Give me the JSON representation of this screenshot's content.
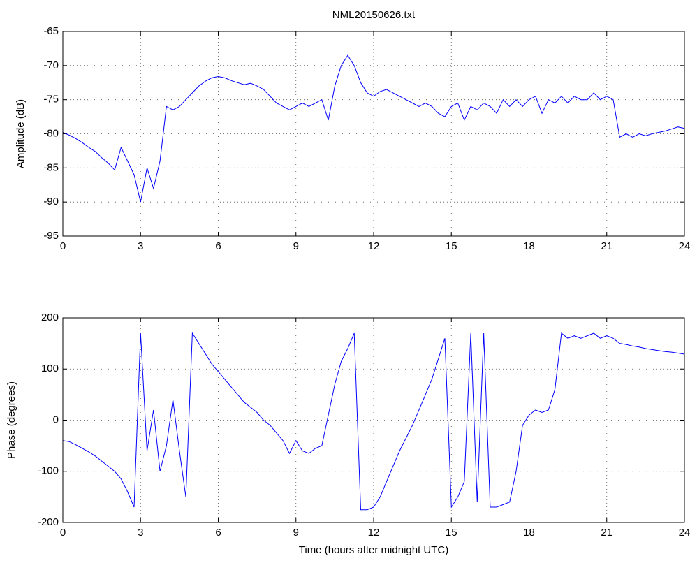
{
  "chart_data": [
    {
      "type": "line",
      "title": "NML20150626.txt",
      "ylabel": "Amplitude (dB)",
      "xlim": [
        0,
        24
      ],
      "xticks": [
        0,
        3,
        6,
        9,
        12,
        15,
        18,
        21,
        24
      ],
      "ylim": [
        -95,
        -65
      ],
      "yticks": [
        -95,
        -90,
        -85,
        -80,
        -75,
        -70,
        -65
      ],
      "grid": true,
      "x": [
        0,
        0.25,
        0.5,
        0.75,
        1,
        1.25,
        1.5,
        1.75,
        2,
        2.25,
        2.5,
        2.75,
        3,
        3.25,
        3.5,
        3.75,
        4,
        4.25,
        4.5,
        4.75,
        5,
        5.25,
        5.5,
        5.75,
        6,
        6.25,
        6.5,
        6.75,
        7,
        7.25,
        7.5,
        7.75,
        8,
        8.25,
        8.5,
        8.75,
        9,
        9.25,
        9.5,
        9.75,
        10,
        10.25,
        10.5,
        10.75,
        11,
        11.25,
        11.5,
        11.75,
        12,
        12.25,
        12.5,
        12.75,
        13,
        13.25,
        13.5,
        13.75,
        14,
        14.25,
        14.5,
        14.75,
        15,
        15.25,
        15.5,
        15.75,
        16,
        16.25,
        16.5,
        16.75,
        17,
        17.25,
        17.5,
        17.75,
        18,
        18.25,
        18.5,
        18.75,
        19,
        19.25,
        19.5,
        19.75,
        20,
        20.25,
        20.5,
        20.75,
        21,
        21.25,
        21.5,
        21.75,
        22,
        22.25,
        22.5,
        22.75,
        23,
        23.25,
        23.5,
        23.75,
        24
      ],
      "series": [
        {
          "color": "#0000ff",
          "values": [
            -79.8,
            -80.2,
            -80.7,
            -81.3,
            -82,
            -82.6,
            -83.5,
            -84.3,
            -85.3,
            -82,
            -84,
            -86,
            -90,
            -85,
            -88,
            -84,
            -76,
            -76.5,
            -76,
            -75,
            -74,
            -73,
            -72.3,
            -71.8,
            -71.6,
            -71.8,
            -72.2,
            -72.5,
            -72.8,
            -72.6,
            -73,
            -73.5,
            -74.5,
            -75.5,
            -76,
            -76.5,
            -76,
            -75.5,
            -76,
            -75.5,
            -75,
            -78,
            -73,
            -70,
            -68.5,
            -70,
            -72.5,
            -74,
            -74.5,
            -73.8,
            -73.5,
            -74,
            -74.5,
            -75,
            -75.5,
            -76,
            -75.5,
            -76,
            -77,
            -77.5,
            -76,
            -75.5,
            -78,
            -76,
            -76.5,
            -75.5,
            -76,
            -77,
            -75,
            -76,
            -75,
            -76,
            -75,
            -74.5,
            -77,
            -75,
            -75.5,
            -74.5,
            -75.5,
            -74.5,
            -75,
            -75,
            -74,
            -75,
            -74.5,
            -75,
            -80.5,
            -80,
            -80.5,
            -80,
            -80.3,
            -80,
            -79.8,
            -79.6,
            -79.3,
            -79,
            -79.2
          ]
        }
      ]
    },
    {
      "type": "line",
      "ylabel": "Phase (degrees)",
      "xlabel": "Time (hours after midnight UTC)",
      "xlim": [
        0,
        24
      ],
      "xticks": [
        0,
        3,
        6,
        9,
        12,
        15,
        18,
        21,
        24
      ],
      "ylim": [
        -200,
        200
      ],
      "yticks": [
        -200,
        -100,
        0,
        100,
        200
      ],
      "grid": true,
      "x": [
        0,
        0.25,
        0.5,
        0.75,
        1,
        1.25,
        1.5,
        1.75,
        2,
        2.25,
        2.5,
        2.75,
        3,
        3.25,
        3.5,
        3.75,
        4,
        4.25,
        4.5,
        4.75,
        5,
        5.25,
        5.5,
        5.75,
        6,
        6.25,
        6.5,
        6.75,
        7,
        7.25,
        7.5,
        7.75,
        8,
        8.25,
        8.5,
        8.75,
        9,
        9.25,
        9.5,
        9.75,
        10,
        10.25,
        10.5,
        10.75,
        11,
        11.25,
        11.5,
        11.75,
        12,
        12.25,
        12.5,
        12.75,
        13,
        13.25,
        13.5,
        13.75,
        14,
        14.25,
        14.5,
        14.75,
        15,
        15.25,
        15.5,
        15.75,
        16,
        16.25,
        16.5,
        16.75,
        17,
        17.25,
        17.5,
        17.75,
        18,
        18.25,
        18.5,
        18.75,
        19,
        19.25,
        19.5,
        19.75,
        20,
        20.25,
        20.5,
        20.75,
        21,
        21.25,
        21.5,
        21.75,
        22,
        22.25,
        22.5,
        22.75,
        23,
        23.25,
        23.5,
        23.75,
        24
      ],
      "series": [
        {
          "color": "#0000ff",
          "values": [
            -40,
            -42,
            -48,
            -55,
            -62,
            -70,
            -80,
            -90,
            -100,
            -115,
            -140,
            -170,
            170,
            -60,
            20,
            -100,
            -50,
            40,
            -60,
            -150,
            170,
            150,
            130,
            110,
            95,
            80,
            65,
            50,
            35,
            25,
            15,
            0,
            -10,
            -25,
            -40,
            -65,
            -40,
            -60,
            -65,
            -55,
            -50,
            10,
            70,
            115,
            140,
            170,
            -175,
            -175,
            -170,
            -150,
            -120,
            -90,
            -60,
            -35,
            -10,
            20,
            50,
            80,
            120,
            160,
            -170,
            -150,
            -120,
            170,
            -160,
            170,
            -170,
            -170,
            -165,
            -160,
            -100,
            -10,
            10,
            20,
            15,
            20,
            60,
            170,
            160,
            165,
            160,
            165,
            170,
            160,
            165,
            160,
            150,
            148,
            145,
            143,
            140,
            138,
            136,
            134,
            133,
            131,
            129
          ]
        }
      ]
    }
  ]
}
